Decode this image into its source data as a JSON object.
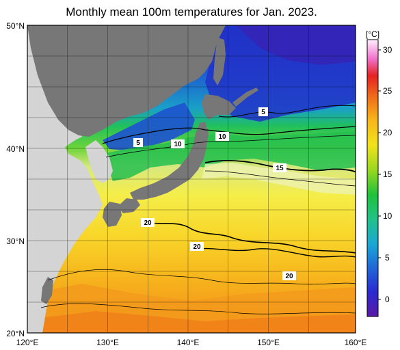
{
  "title": "Monthly mean 100m temperatures for Jan. 2023.",
  "lat_ticks": [
    "50°N",
    "40°N",
    "30°N",
    "20°N"
  ],
  "lon_ticks": [
    "120°E",
    "130°E",
    "140°E",
    "150°E",
    "160°E"
  ],
  "colorbar": {
    "unit": "[°C]",
    "ticks": [
      "30",
      "25",
      "20",
      "15",
      "10",
      "5",
      "0"
    ],
    "range": [
      -2,
      32
    ],
    "colors": [
      "#5a1aa8",
      "#1f3cc8",
      "#1a8fd6",
      "#22c0a6",
      "#1fc23a",
      "#9ad81e",
      "#f2e21a",
      "#f8b51a",
      "#f0701a",
      "#e42222",
      "#ff7fd0",
      "#fff0ff"
    ]
  },
  "contour_labels": [
    {
      "text": "5"
    },
    {
      "text": "5"
    },
    {
      "text": "10"
    },
    {
      "text": "10"
    },
    {
      "text": "15"
    },
    {
      "text": "20"
    },
    {
      "text": "20"
    },
    {
      "text": "20"
    }
  ],
  "colors": {
    "land": "#777777",
    "other_land": "#d4d4d4",
    "frame": "#000000"
  }
}
